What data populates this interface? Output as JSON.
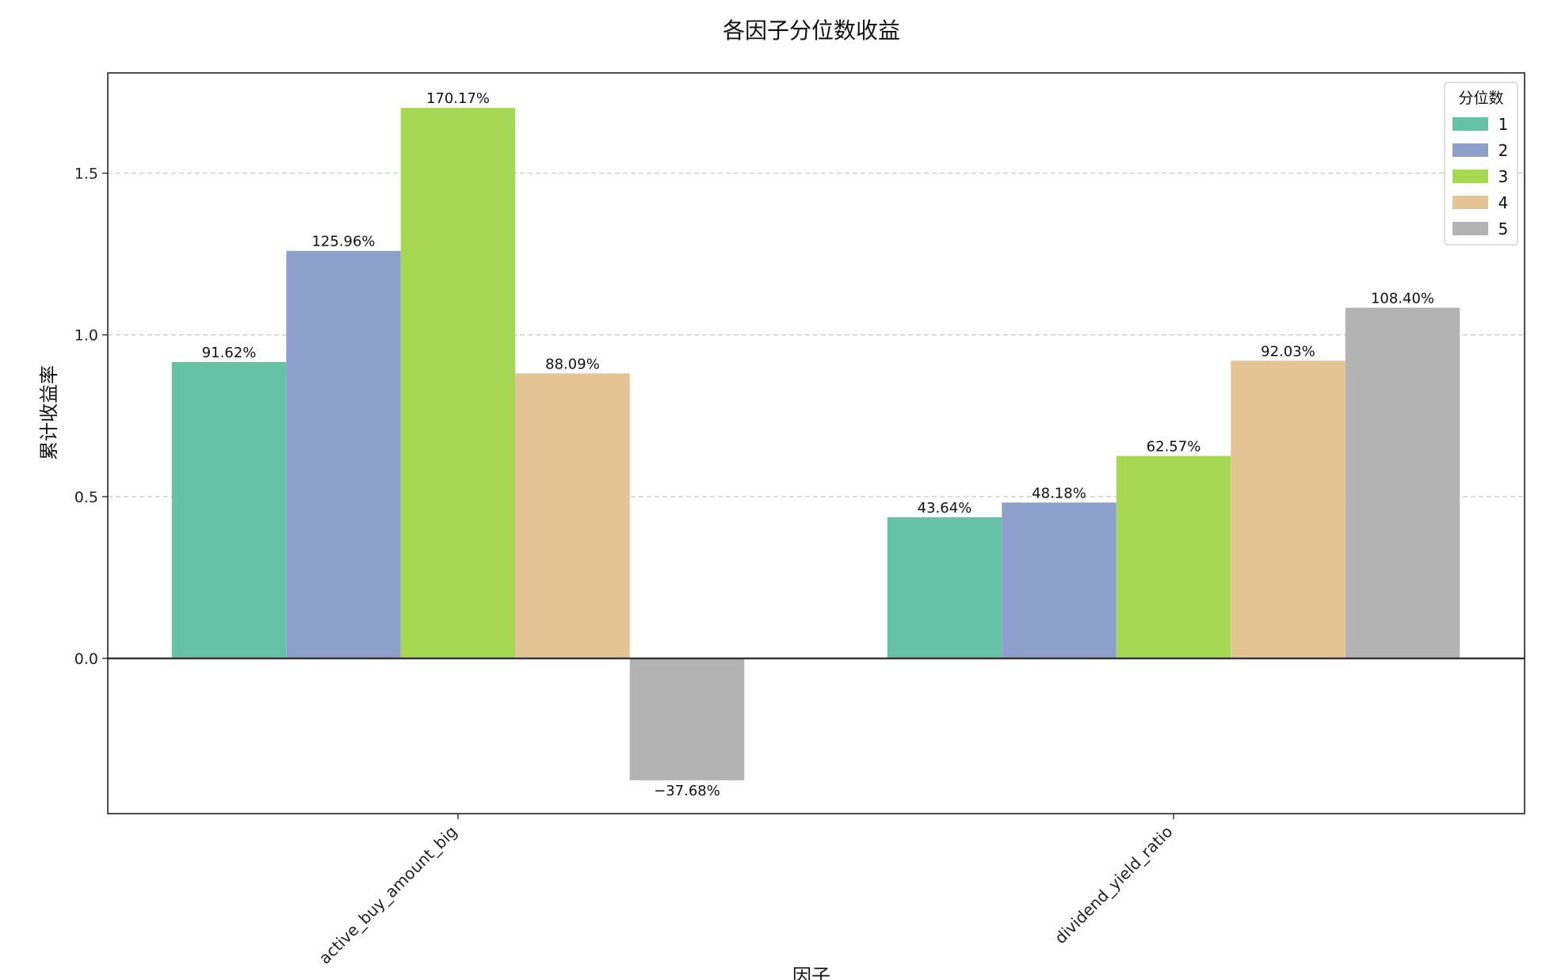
{
  "chart_data": {
    "type": "bar",
    "title": "各因子分位数收益",
    "xlabel": "因子",
    "ylabel": "累计收益率",
    "categories": [
      "active_buy_amount_big",
      "dividend_yield_ratio"
    ],
    "series": [
      {
        "name": "1",
        "color": "#66c2a5",
        "values": [
          0.9162,
          0.4364
        ],
        "labels": [
          "91.62%",
          "43.64%"
        ]
      },
      {
        "name": "2",
        "color": "#8da0cb",
        "values": [
          1.2596,
          0.4818
        ],
        "labels": [
          "125.96%",
          "48.18%"
        ]
      },
      {
        "name": "3",
        "color": "#a6d854",
        "values": [
          1.7017,
          0.6257
        ],
        "labels": [
          "170.17%",
          "62.57%"
        ]
      },
      {
        "name": "4",
        "color": "#e5c494",
        "values": [
          0.8809,
          0.9203
        ],
        "labels": [
          "88.09%",
          "92.03%"
        ]
      },
      {
        "name": "5",
        "color": "#b3b3b3",
        "values": [
          -0.3768,
          1.084
        ],
        "labels": [
          "−37.68%",
          "108.40%"
        ]
      }
    ],
    "legend_title": "分位数",
    "legend_position": "top-right",
    "yticks": [
      0.0,
      0.5,
      1.0,
      1.5
    ],
    "ytick_labels": [
      "0.0",
      "0.5",
      "1.0",
      "1.5"
    ],
    "ylim": [
      -0.48,
      1.81
    ],
    "grid": "y-dashed"
  }
}
